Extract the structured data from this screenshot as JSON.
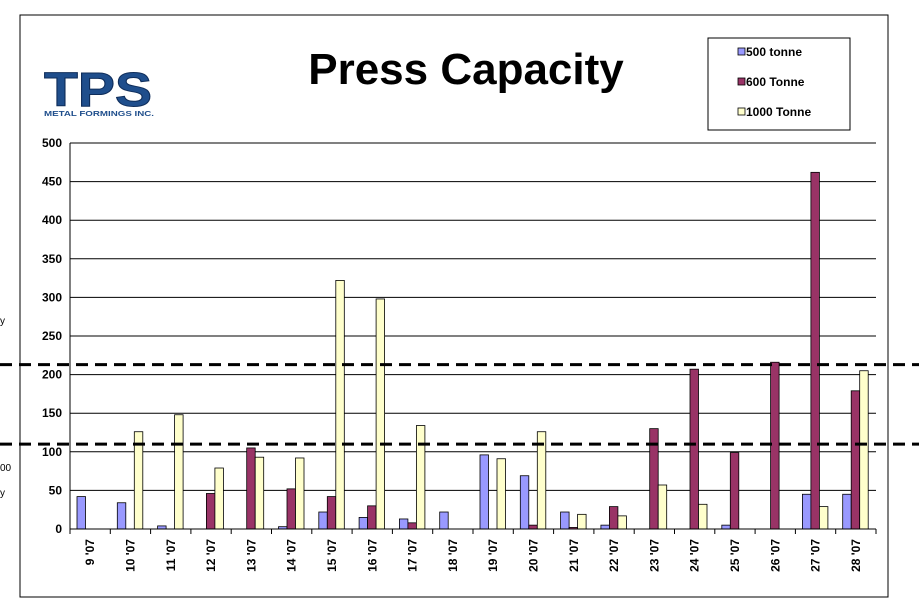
{
  "logo": {
    "main": "TPS",
    "sub": "METAL FORMINGS INC."
  },
  "edge_fragments": [
    "y",
    "00",
    "y"
  ],
  "colors": {
    "s500": "#9999ff",
    "s600": "#993366",
    "s1000": "#ffffcc",
    "grid": "#000000",
    "reference": "#000000"
  },
  "reference_lines": [
    110,
    213
  ],
  "chart_data": {
    "type": "bar",
    "title": "Press Capacity",
    "xlabel": "",
    "ylabel": "",
    "ylim": [
      0,
      500
    ],
    "yticks": [
      0,
      50,
      100,
      150,
      200,
      250,
      300,
      350,
      400,
      450,
      500
    ],
    "grid": true,
    "legend_position": "top-right",
    "categories": [
      "9 '07",
      "10 '07",
      "11 '07",
      "12 '07",
      "13 '07",
      "14 '07",
      "15 '07",
      "16 '07",
      "17 '07",
      "18 '07",
      "19 '07",
      "20 '07",
      "21 '07",
      "22 '07",
      "23 '07",
      "24 '07",
      "25 '07",
      "26 '07",
      "27 '07",
      "28 '07"
    ],
    "series": [
      {
        "name": "500 tonne",
        "color": "#9999ff",
        "values": [
          42,
          34,
          4,
          0,
          0,
          3,
          22,
          15,
          13,
          22,
          96,
          69,
          22,
          5,
          0,
          0,
          5,
          0,
          45,
          45
        ]
      },
      {
        "name": "600 Tonne",
        "color": "#993366",
        "values": [
          0,
          0,
          0,
          46,
          105,
          52,
          42,
          30,
          8,
          0,
          0,
          5,
          2,
          29,
          130,
          207,
          99,
          216,
          462,
          179
        ]
      },
      {
        "name": "1000 Tonne",
        "color": "#ffffcc",
        "values": [
          0,
          126,
          148,
          79,
          93,
          92,
          322,
          298,
          134,
          0,
          91,
          126,
          19,
          17,
          57,
          32,
          0,
          0,
          29,
          205
        ]
      }
    ]
  }
}
